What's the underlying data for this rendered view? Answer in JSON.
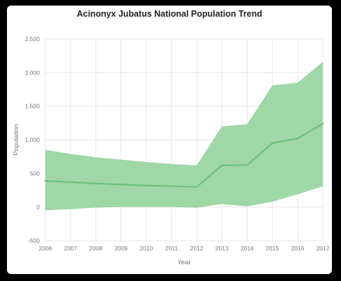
{
  "chart_data": {
    "type": "area",
    "title": "Acinonyx Jubatus National Population Trend",
    "xlabel": "Year",
    "ylabel": "Population",
    "x": [
      2006,
      2007,
      2008,
      2009,
      2010,
      2011,
      2012,
      2013,
      2014,
      2015,
      2016,
      2017
    ],
    "xlim": [
      2006,
      2017
    ],
    "ylim": [
      -500,
      2500
    ],
    "yticks": [
      -500,
      0,
      500,
      1000,
      1500,
      2000,
      2500
    ],
    "ytick_labels": [
      "-500",
      "0",
      "500",
      "1,000",
      "1,500",
      "2,000",
      "2,500"
    ],
    "grid": true,
    "series": [
      {
        "values": [
          390,
          370,
          350,
          335,
          320,
          310,
          300,
          620,
          625,
          950,
          1020,
          1240
        ],
        "lower": [
          -50,
          -30,
          -10,
          0,
          0,
          0,
          -10,
          45,
          10,
          80,
          190,
          310
        ],
        "upper": [
          850,
          790,
          740,
          705,
          670,
          640,
          620,
          1200,
          1230,
          1810,
          1850,
          2160
        ]
      }
    ],
    "colors": {
      "band": "#9fd7a6",
      "line": "#6cc17a"
    }
  }
}
